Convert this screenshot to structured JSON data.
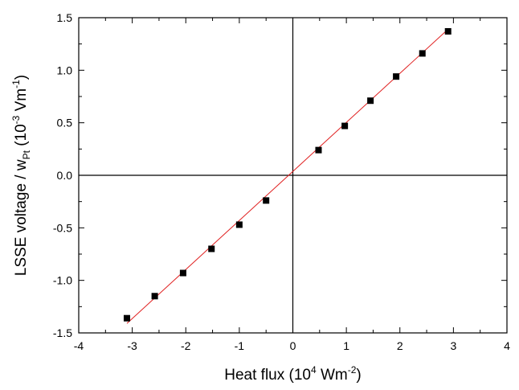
{
  "chart_data": {
    "type": "scatter",
    "xlabel": {
      "text": "Heat flux (10",
      "sup": "4",
      "text2": " Wm",
      "sup2": "-2",
      "text3": ")"
    },
    "ylabel": {
      "text": "LSSE voltage / w",
      "sub": "Pt",
      "text2": " (10",
      "sup": "-3",
      "text3": " Vm",
      "sup2": "-1",
      "text4": ")"
    },
    "xlim": [
      -4,
      4
    ],
    "ylim": [
      -1.5,
      1.5
    ],
    "x_ticks": [
      "-4",
      "-3",
      "-2",
      "-1",
      "0",
      "1",
      "2",
      "3",
      "4"
    ],
    "y_ticks": [
      "-1.5",
      "-1.0",
      "-0.5",
      "0.0",
      "0.5",
      "1.0",
      "1.5"
    ],
    "reference_lines": {
      "x": 0,
      "y": 0
    },
    "series": [
      {
        "type": "scatter",
        "marker": "square",
        "color": "#000000",
        "x": [
          -3.1,
          -2.58,
          -2.05,
          -1.52,
          -1.0,
          -0.5,
          0.48,
          0.97,
          1.45,
          1.93,
          2.42,
          2.9
        ],
        "y": [
          -1.36,
          -1.15,
          -0.93,
          -0.7,
          -0.47,
          -0.24,
          0.24,
          0.47,
          0.71,
          0.94,
          1.16,
          1.37
        ]
      },
      {
        "type": "line",
        "fit": "linear",
        "color": "#e02020",
        "x": [
          -3.1,
          2.9
        ],
        "y": [
          -1.41,
          1.39
        ]
      }
    ]
  }
}
